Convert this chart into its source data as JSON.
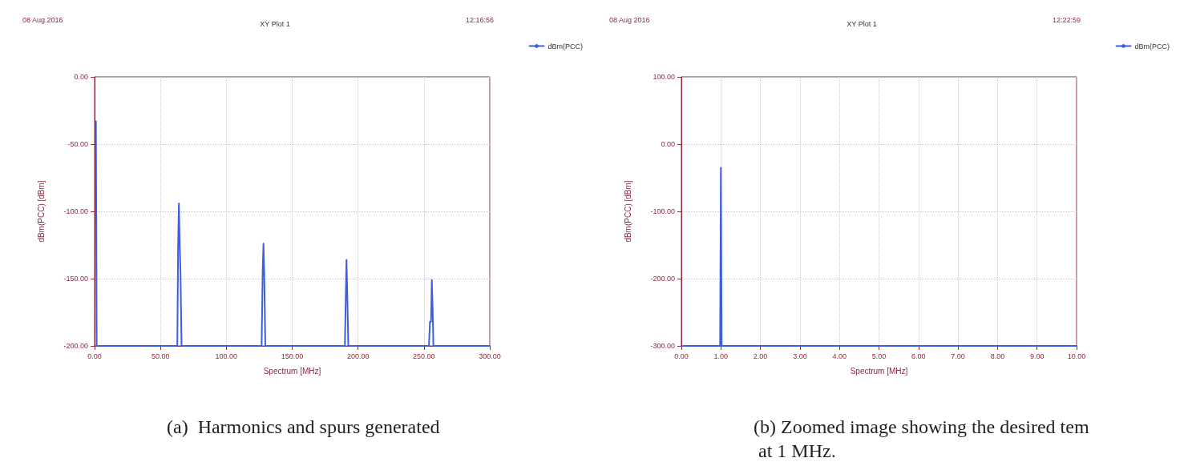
{
  "chart_data": [
    {
      "type": "line",
      "subtitle": "XY Plot 1",
      "xlabel": "Spectrum [MHz]",
      "ylabel": "dBm(PCC) [dBm]",
      "annotations": [
        "08 Aug 2016",
        "12:16:56",
        "(a)  Harmonics and spurs generated"
      ],
      "xlim": [
        0,
        300
      ],
      "xticks": [
        {
          "value": 0,
          "label": "0.00"
        },
        {
          "value": 50,
          "label": "50.00"
        },
        {
          "value": 100,
          "label": "100.00"
        },
        {
          "value": 150,
          "label": "150.00"
        },
        {
          "value": 200,
          "label": "200.00"
        },
        {
          "value": 250,
          "label": "250.00"
        },
        {
          "value": 300,
          "label": "300.00"
        }
      ],
      "ylim": [
        -200,
        0
      ],
      "yticks": [
        {
          "value": 0,
          "label": "0.00"
        },
        {
          "value": -50,
          "label": "-50.00"
        },
        {
          "value": -100,
          "label": "-100.00"
        },
        {
          "value": -150,
          "label": "-150.00"
        },
        {
          "value": -200,
          "label": "-200.00"
        }
      ],
      "grid": true,
      "legend": "right",
      "marker": "none",
      "line_style": "solid",
      "series": [
        {
          "name": "dBm(PCC)",
          "color": "#3d5ee0",
          "x": [
            1,
            1.6,
            62,
            62.8,
            63.4,
            64,
            64.6,
            65.2,
            66,
            126,
            126.8,
            127.6,
            128.2,
            128.8,
            129.6,
            190,
            190.6,
            191.2,
            191.8,
            192.6,
            253,
            253.8,
            254.6,
            255.4,
            256,
            256.6,
            257.2,
            300
          ],
          "values": [
            -33,
            -200,
            -200,
            -200,
            -126,
            -94,
            -124,
            -145,
            -200,
            -200,
            -200,
            -144,
            -124,
            -148,
            -200,
            -200,
            -168,
            -136,
            -160,
            -200,
            -200,
            -200,
            -182,
            -182,
            -151,
            -172,
            -200,
            -200
          ]
        }
      ]
    },
    {
      "type": "line",
      "subtitle": "XY Plot 1",
      "xlabel": "Spectrum [MHz]",
      "ylabel": "dBm(PCC) [dBm]",
      "annotations": [
        "08 Aug 2016",
        "12:22:59",
        "(b) Zoomed image showing the desired tem at 1 MHz."
      ],
      "xlim": [
        0,
        10
      ],
      "xticks": [
        {
          "value": 0,
          "label": "0.00"
        },
        {
          "value": 1,
          "label": "1.00"
        },
        {
          "value": 2,
          "label": "2.00"
        },
        {
          "value": 3,
          "label": "3.00"
        },
        {
          "value": 4,
          "label": "4.00"
        },
        {
          "value": 5,
          "label": "5.00"
        },
        {
          "value": 6,
          "label": "6.00"
        },
        {
          "value": 7,
          "label": "7.00"
        },
        {
          "value": 8,
          "label": "8.00"
        },
        {
          "value": 9,
          "label": "9.00"
        },
        {
          "value": 10,
          "label": "10.00"
        }
      ],
      "ylim": [
        -300,
        100
      ],
      "yticks": [
        {
          "value": 100,
          "label": "100.00"
        },
        {
          "value": 0,
          "label": "0.00"
        },
        {
          "value": -100,
          "label": "-100.00"
        },
        {
          "value": -200,
          "label": "-200.00"
        },
        {
          "value": -300,
          "label": "-300.00"
        }
      ],
      "grid": true,
      "legend": "right",
      "marker": "none",
      "line_style": "solid",
      "series": [
        {
          "name": "dBm(PCC)",
          "color": "#3d5ee0",
          "x": [
            0,
            0.98,
            1,
            1.02,
            10
          ],
          "values": [
            -300,
            -300,
            -35,
            -300,
            -300
          ]
        }
      ]
    }
  ]
}
